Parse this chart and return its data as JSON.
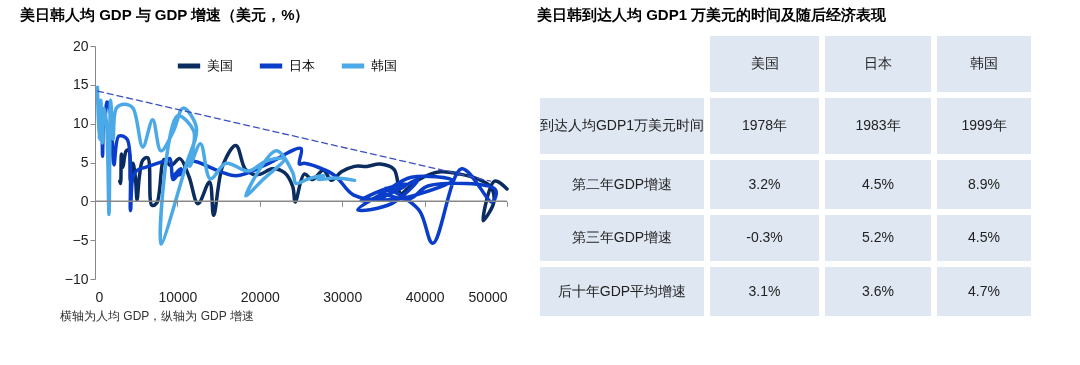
{
  "chart_data": [
    {
      "type": "line",
      "title": "美日韩人均 GDP 与 GDP 增速（美元，%）",
      "xlim": [
        0,
        50000
      ],
      "xticks": [
        0,
        10000,
        20000,
        30000,
        40000,
        50000
      ],
      "ylim": [
        -10,
        20
      ],
      "yticks": [
        -10,
        -5,
        0,
        5,
        10,
        15,
        20
      ],
      "legend": "top",
      "grid": false,
      "marker": "none",
      "ref_lines": [
        {
          "axis": "y",
          "value": 0,
          "color": "#888888"
        }
      ],
      "annotations": [
        "横轴为人均 GDP，纵轴为 GDP 增速"
      ],
      "series": [
        {
          "name": "美国",
          "color": "#0b2c5f",
          "x": [
            3000,
            3100,
            3200,
            3400,
            3600,
            3800,
            4100,
            4300,
            4600,
            4900,
            5100,
            5400,
            5800,
            6400,
            6900,
            7500,
            8400,
            9200,
            10300,
            11400,
            12500,
            13900,
            14400,
            15500,
            17100,
            18200,
            19100,
            20100,
            21500,
            23000,
            24000,
            24300,
            25400,
            26400,
            27700,
            28700,
            29900,
            31500,
            33000,
            34600,
            36300,
            37100,
            38000,
            39500,
            41900,
            44300,
            46400,
            48000,
            48400,
            47100,
            48500,
            50000
          ],
          "values": [
            2.6,
            2.3,
            6.1,
            4.4,
            5.8,
            6.5,
            6.6,
            2.7,
            4.9,
            3.1,
            0.2,
            3.3,
            5.3,
            5.6,
            -0.5,
            -0.2,
            5.4,
            4.6,
            5.5,
            3.2,
            -0.3,
            2.5,
            -1.8,
            4.6,
            7.2,
            4.2,
            3.5,
            3.5,
            4.2,
            3.7,
            1.9,
            -0.1,
            3.5,
            2.8,
            4.0,
            2.7,
            3.8,
            4.5,
            4.5,
            4.8,
            4.1,
            1.0,
            1.7,
            2.9,
            3.8,
            3.5,
            2.9,
            1.9,
            -0.1,
            -2.5,
            2.6,
            1.6
          ]
        },
        {
          "name": "日本",
          "color": "#0a3dc9",
          "x": [
            480,
            560,
            630,
            730,
            840,
            920,
            1070,
            1230,
            1450,
            1670,
            2000,
            2300,
            2900,
            3900,
            4300,
            4600,
            5100,
            6200,
            8700,
            9100,
            9500,
            10400,
            9600,
            10400,
            11000,
            11600,
            17100,
            20700,
            25000,
            24800,
            25400,
            29000,
            31400,
            35800,
            39200,
            43400,
            38400,
            35000,
            31900,
            36000,
            39200,
            34600,
            32300,
            35000,
            37800,
            37200,
            35400,
            35300,
            39300,
            41000,
            44500,
            48200,
            48600,
            40500,
            38100,
            34500
          ],
          "values": [
            12.0,
            12.0,
            8.9,
            8.5,
            11.7,
            5.8,
            10.6,
            11.0,
            12.8,
            12.5,
            10.0,
            4.7,
            8.4,
            8.0,
            -1.2,
            3.1,
            4.0,
            4.4,
            5.3,
            5.5,
            2.8,
            4.2,
            3.3,
            3.5,
            4.5,
            5.2,
            3.3,
            4.7,
            6.8,
            4.8,
            4.9,
            3.4,
            0.8,
            0.2,
            0.9,
            2.7,
            3.1,
            1.1,
            -1.1,
            -0.3,
            2.8,
            0.4,
            0.1,
            1.5,
            2.2,
            1.7,
            1.4,
            1.7,
            -1.1,
            -5.4,
            4.2,
            -0.1,
            1.5,
            2.0,
            0.3,
            1.2
          ]
        },
        {
          "name": "韩国",
          "color": "#4aa9e6",
          "x": [
            300,
            500,
            700,
            900,
            1100,
            1400,
            1700,
            1900,
            2200,
            2600,
            3600,
            4600,
            5800,
            7000,
            8000,
            9500,
            10700,
            12300,
            11000,
            8000,
            10000,
            12000,
            11500,
            12800,
            14000,
            15900,
            18600,
            20800,
            23000,
            20400,
            18300,
            22000,
            24000,
            24400,
            25900,
            27800,
            27100,
            29000,
            31500
          ],
          "values": [
            14.7,
            8.0,
            13.0,
            7.5,
            12.0,
            10.0,
            -1.7,
            13.0,
            8.0,
            12.0,
            12.5,
            12.0,
            7.0,
            10.5,
            6.5,
            9.0,
            12.0,
            9.5,
            4.5,
            -5.5,
            11.0,
            9.0,
            4.5,
            7.4,
            2.9,
            4.9,
            3.9,
            5.2,
            5.5,
            2.8,
            0.7,
            6.5,
            3.7,
            2.3,
            2.9,
            3.3,
            2.8,
            3.0,
            2.7
          ]
        },
        {
          "type": "line",
          "color": "#3a4fc4",
          "line_style": "dashed",
          "x": [
            300,
            48000
          ],
          "values": [
            14.2,
            2.6
          ]
        }
      ]
    },
    {
      "type": "other",
      "title": "美日韩到达人均 GDP1 万美元的时间及随后经济表现",
      "categories": [
        "美国",
        "日本",
        "韩国"
      ],
      "y_categories": [
        "到达人均GDP1万美元时间",
        "第二年GDP增速",
        "第三年GDP增速",
        "后十年GDP平均增速"
      ],
      "cell_labels": [
        [
          "1978年",
          "1983年",
          "1999年"
        ],
        [
          "3.2%",
          "4.5%",
          "8.9%"
        ],
        [
          "-0.3%",
          "5.2%",
          "4.5%"
        ],
        [
          "3.1%",
          "3.6%",
          "4.7%"
        ]
      ]
    }
  ]
}
